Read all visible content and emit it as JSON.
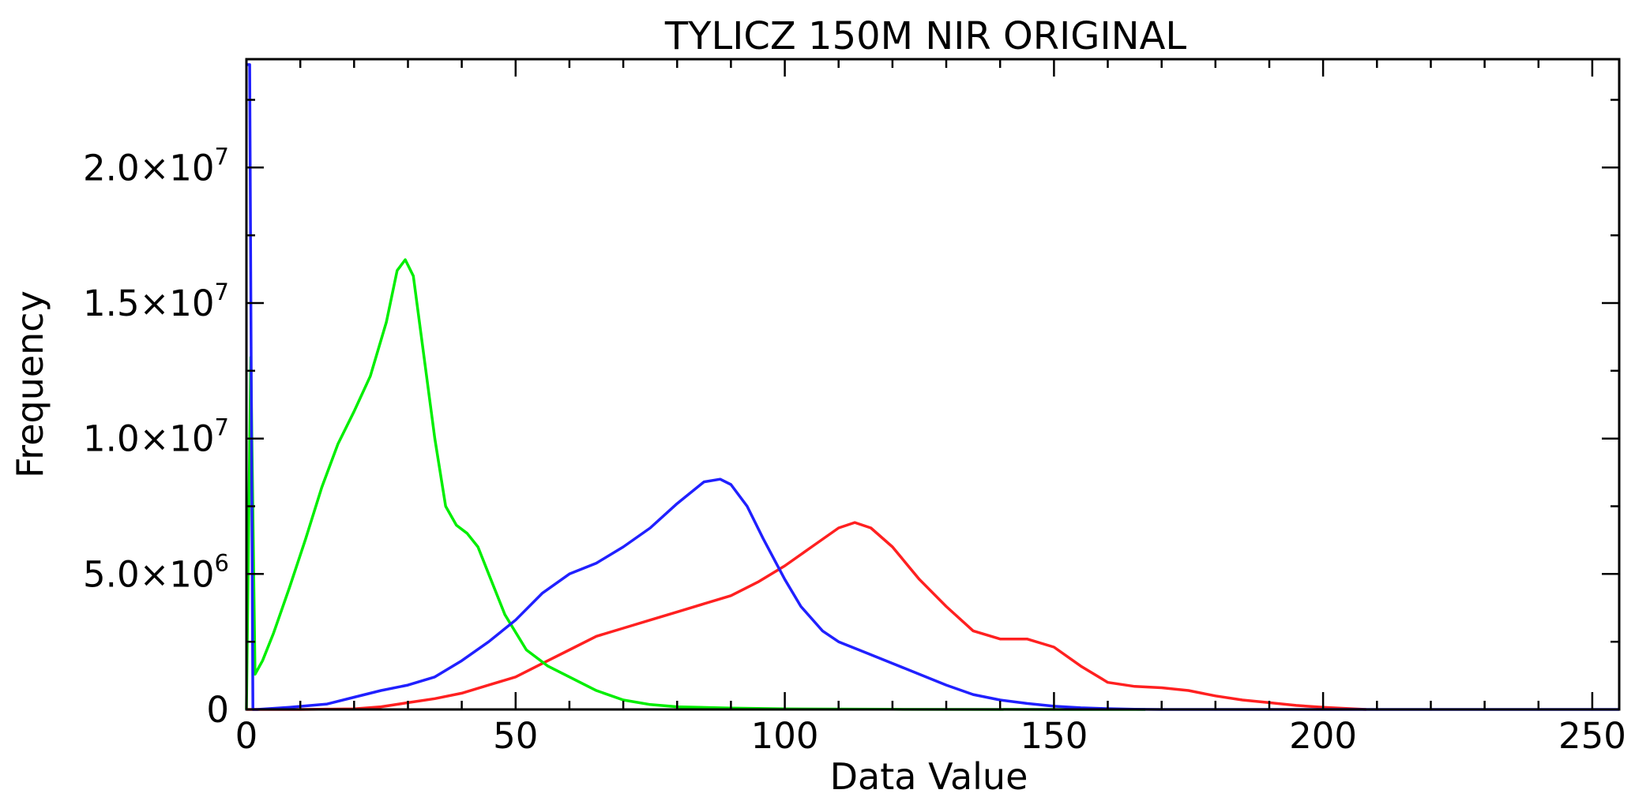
{
  "chart_data": {
    "type": "line",
    "title": "TYLICZ 150M NIR ORIGINAL",
    "xlabel": "Data Value",
    "ylabel": "Frequency",
    "xlim": [
      0,
      255
    ],
    "ylim": [
      0,
      24000000
    ],
    "grid": false,
    "legend": "none",
    "x_ticks": [
      {
        "value": 0,
        "label": "0"
      },
      {
        "value": 50,
        "label": "50"
      },
      {
        "value": 100,
        "label": "100"
      },
      {
        "value": 150,
        "label": "150"
      },
      {
        "value": 200,
        "label": "200"
      },
      {
        "value": 250,
        "label": "250"
      }
    ],
    "x_minor_step": 10,
    "y_ticks": [
      {
        "value": 0,
        "mantissa": "0",
        "exponent": ""
      },
      {
        "value": 5000000,
        "mantissa": "5.0×10",
        "exponent": "6"
      },
      {
        "value": 10000000,
        "mantissa": "1.0×10",
        "exponent": "7"
      },
      {
        "value": 15000000,
        "mantissa": "1.5×10",
        "exponent": "7"
      },
      {
        "value": 20000000,
        "mantissa": "2.0×10",
        "exponent": "7"
      }
    ],
    "y_minor_step": 2500000,
    "series": [
      {
        "color": "#ff2020",
        "x": [
          0,
          10,
          20,
          25,
          30,
          35,
          40,
          45,
          50,
          55,
          60,
          65,
          70,
          75,
          80,
          85,
          90,
          95,
          100,
          105,
          110,
          113,
          116,
          120,
          125,
          130,
          135,
          140,
          145,
          150,
          155,
          160,
          165,
          170,
          175,
          180,
          185,
          190,
          195,
          200,
          205,
          208
        ],
        "y": [
          0,
          0,
          20000,
          100000,
          250000,
          400000,
          600000,
          900000,
          1200000,
          1700000,
          2200000,
          2700000,
          3000000,
          3300000,
          3600000,
          3900000,
          4200000,
          4700000,
          5300000,
          6000000,
          6700000,
          6900000,
          6700000,
          6000000,
          4800000,
          3800000,
          2900000,
          2600000,
          2600000,
          2300000,
          1600000,
          1000000,
          850000,
          800000,
          700000,
          500000,
          350000,
          250000,
          150000,
          80000,
          30000,
          0
        ]
      },
      {
        "color": "#00ee00",
        "x": [
          0,
          0.8,
          1.6,
          3,
          5,
          8,
          11,
          14,
          17,
          20,
          23,
          26,
          28,
          29.5,
          31,
          33,
          35,
          37,
          39,
          41,
          43,
          45,
          48,
          52,
          56,
          60,
          65,
          70,
          75,
          80,
          90,
          100,
          120,
          150,
          167
        ],
        "y": [
          0,
          13000000,
          1300000,
          1800000,
          2800000,
          4500000,
          6300000,
          8200000,
          9800000,
          11000000,
          12300000,
          14300000,
          16200000,
          16600000,
          16000000,
          13000000,
          10000000,
          7500000,
          6800000,
          6500000,
          6000000,
          5000000,
          3500000,
          2200000,
          1600000,
          1200000,
          700000,
          350000,
          180000,
          100000,
          50000,
          20000,
          5000,
          0,
          0
        ]
      },
      {
        "color": "#2020ff",
        "x": [
          0,
          0.6,
          1.2,
          2,
          8,
          15,
          20,
          25,
          30,
          35,
          40,
          45,
          50,
          55,
          60,
          65,
          70,
          75,
          80,
          85,
          88,
          90,
          93,
          96,
          100,
          103,
          107,
          110,
          115,
          120,
          125,
          130,
          135,
          140,
          145,
          150,
          155,
          160,
          165,
          170,
          180,
          200,
          255
        ],
        "y": [
          23800000,
          23800000,
          0,
          0,
          80000,
          200000,
          450000,
          700000,
          900000,
          1200000,
          1800000,
          2500000,
          3300000,
          4300000,
          5000000,
          5400000,
          6000000,
          6700000,
          7600000,
          8400000,
          8500000,
          8300000,
          7500000,
          6300000,
          4800000,
          3800000,
          2900000,
          2500000,
          2100000,
          1700000,
          1300000,
          900000,
          550000,
          350000,
          220000,
          120000,
          60000,
          30000,
          10000,
          0,
          0,
          0,
          0
        ]
      }
    ]
  }
}
